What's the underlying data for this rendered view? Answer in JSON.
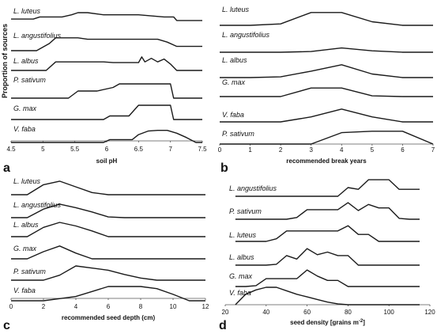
{
  "chart_data": [
    {
      "type": "line",
      "panel": "a",
      "xlabel": "soil pH",
      "ylabel": "Proportion of sources",
      "xlim": [
        4.5,
        7.5
      ],
      "xticks": [
        "4.5",
        "5",
        "5.5",
        "6",
        "6.5",
        "7",
        "7.5"
      ],
      "series": [
        {
          "name": "L. luteus",
          "x": [
            4.5,
            4.85,
            4.95,
            5.3,
            5.45,
            5.55,
            5.7,
            5.95,
            6.5,
            6.9,
            7.05,
            7.1,
            7.5
          ],
          "y": [
            0.55,
            0.55,
            0.7,
            0.7,
            0.85,
            1.0,
            1.0,
            0.85,
            0.85,
            0.7,
            0.7,
            0.45,
            0.45
          ]
        },
        {
          "name": "L. angustifolius",
          "x": [
            4.5,
            4.9,
            5.1,
            5.2,
            5.55,
            5.7,
            6.8,
            6.95,
            7.1,
            7.5
          ],
          "y": [
            0.0,
            0.0,
            0.5,
            0.9,
            0.9,
            0.8,
            0.8,
            0.6,
            0.3,
            0.3
          ]
        },
        {
          "name": "L. albus",
          "x": [
            4.5,
            5.05,
            5.2,
            5.95,
            6.1,
            6.5,
            6.55,
            6.6,
            6.7,
            6.8,
            6.9,
            7.0,
            7.1,
            7.5
          ],
          "y": [
            0.0,
            0.0,
            0.6,
            0.6,
            0.55,
            0.55,
            0.95,
            0.6,
            0.85,
            0.6,
            0.8,
            0.45,
            0.0,
            0.0
          ]
        },
        {
          "name": "P. sativum",
          "x": [
            4.5,
            5.4,
            5.55,
            5.85,
            6.1,
            6.2,
            7.0,
            7.05,
            7.5
          ],
          "y": [
            0.0,
            0.0,
            0.5,
            0.5,
            0.75,
            1.0,
            1.0,
            0.0,
            0.0
          ]
        },
        {
          "name": "G. max",
          "x": [
            4.5,
            5.95,
            6.05,
            6.35,
            6.5,
            7.0,
            7.05,
            7.5
          ],
          "y": [
            0.0,
            0.0,
            0.25,
            0.25,
            1.0,
            1.0,
            0.0,
            0.0
          ]
        },
        {
          "name": "V. faba",
          "x": [
            4.5,
            5.95,
            6.05,
            6.4,
            6.5,
            6.65,
            6.8,
            6.95,
            7.1,
            7.25,
            7.4,
            7.5
          ],
          "y": [
            0.0,
            0.0,
            0.2,
            0.2,
            0.55,
            0.8,
            0.85,
            0.85,
            0.65,
            0.35,
            0.0,
            0.0
          ]
        }
      ]
    },
    {
      "type": "line",
      "panel": "b",
      "xlabel": "recommended break years",
      "xlim": [
        0,
        7
      ],
      "xticks": [
        "0",
        "1",
        "2",
        "3",
        "4",
        "5",
        "6",
        "7"
      ],
      "series": [
        {
          "name": "L. luteus",
          "x": [
            0,
            1,
            2,
            3,
            4,
            5,
            6,
            7
          ],
          "y": [
            0.0,
            0.0,
            0.1,
            0.9,
            0.9,
            0.25,
            0.0,
            0.0
          ]
        },
        {
          "name": "L. angustifolius",
          "x": [
            0,
            1,
            2,
            3,
            4,
            5,
            6,
            7
          ],
          "y": [
            0.0,
            0.0,
            0.0,
            0.05,
            0.3,
            0.1,
            0.0,
            0.0
          ]
        },
        {
          "name": "L. albus",
          "x": [
            0,
            1,
            2,
            3,
            4,
            5,
            6,
            7
          ],
          "y": [
            0.0,
            0.0,
            0.05,
            0.45,
            0.9,
            0.25,
            0.0,
            0.0
          ]
        },
        {
          "name": "G. max",
          "x": [
            0,
            1,
            2,
            3,
            4,
            5,
            6,
            7
          ],
          "y": [
            0.0,
            0.0,
            0.0,
            0.6,
            0.6,
            0.05,
            0.0,
            0.0
          ]
        },
        {
          "name": "V. faba",
          "x": [
            0,
            1,
            2,
            3,
            4,
            5,
            6,
            7
          ],
          "y": [
            0.0,
            0.0,
            0.0,
            0.35,
            0.9,
            0.35,
            0.0,
            0.0
          ]
        },
        {
          "name": "P. sativum",
          "x": [
            0,
            1,
            2,
            3,
            4,
            5,
            6,
            7
          ],
          "y": [
            0.0,
            0.0,
            0.0,
            0.0,
            0.8,
            0.9,
            0.9,
            0.0
          ]
        }
      ]
    },
    {
      "type": "line",
      "panel": "c",
      "xlabel": "recommended seed depth (cm)",
      "xlim": [
        0,
        12
      ],
      "xticks": [
        "0",
        "2",
        "4",
        "6",
        "8",
        "10",
        "12"
      ],
      "series": [
        {
          "name": "L. luteus",
          "x": [
            0,
            1,
            2,
            3,
            4,
            5,
            6,
            7,
            8,
            9,
            10,
            11,
            12
          ],
          "y": [
            0.0,
            0.0,
            0.7,
            0.95,
            0.55,
            0.15,
            0.0,
            0.0,
            0.0,
            0.0,
            0.0,
            0.0,
            0.0
          ]
        },
        {
          "name": "L. angustifolius",
          "x": [
            0,
            1,
            2,
            3,
            4,
            5,
            6,
            7,
            8,
            9,
            10,
            11,
            12
          ],
          "y": [
            0.0,
            0.0,
            0.6,
            0.95,
            0.7,
            0.4,
            0.05,
            0.0,
            0.0,
            0.0,
            0.0,
            0.0,
            0.0
          ]
        },
        {
          "name": "L. albus",
          "x": [
            0,
            1,
            2,
            3,
            4,
            5,
            6,
            7,
            8,
            9,
            10,
            11,
            12
          ],
          "y": [
            0.0,
            0.0,
            0.65,
            1.0,
            0.75,
            0.4,
            0.0,
            0.0,
            0.0,
            0.0,
            0.0,
            0.0,
            0.0
          ]
        },
        {
          "name": "G. max",
          "x": [
            0,
            1,
            2,
            3,
            4,
            5,
            6,
            7,
            8,
            9,
            10,
            11,
            12
          ],
          "y": [
            0.0,
            0.0,
            0.5,
            0.9,
            0.4,
            0.0,
            0.0,
            0.0,
            0.0,
            0.0,
            0.0,
            0.0,
            0.0
          ]
        },
        {
          "name": "P. sativum",
          "x": [
            0,
            1,
            2,
            3,
            4,
            5,
            6,
            7,
            8,
            9,
            10,
            11,
            12
          ],
          "y": [
            0.0,
            0.0,
            0.0,
            0.35,
            1.0,
            0.85,
            0.7,
            0.4,
            0.15,
            0.0,
            0.0,
            0.0,
            0.0
          ]
        },
        {
          "name": "V. faba",
          "x": [
            0,
            1,
            2,
            3,
            4,
            5,
            6,
            7,
            8,
            9,
            10,
            11,
            12
          ],
          "y": [
            0.0,
            0.0,
            0.0,
            0.15,
            0.3,
            0.65,
            1.0,
            1.0,
            1.0,
            0.85,
            0.45,
            0.0,
            0.0
          ]
        }
      ]
    },
    {
      "type": "line",
      "panel": "d",
      "xlabel": "seed density [grains m",
      "xlabel_superscript": "-2",
      "xlabel_suffix": "]",
      "xlim": [
        20,
        120
      ],
      "xticks": [
        "20",
        "40",
        "60",
        "80",
        "100",
        "120"
      ],
      "series": [
        {
          "name": "L. angustifolius",
          "x": [
            25,
            70,
            75,
            80,
            85,
            90,
            95,
            100,
            105,
            110,
            115
          ],
          "y": [
            0.0,
            0.0,
            0.0,
            0.5,
            0.4,
            0.95,
            0.95,
            0.95,
            0.4,
            0.4,
            0.4
          ]
        },
        {
          "name": "P. sativum",
          "x": [
            25,
            50,
            55,
            60,
            65,
            70,
            75,
            80,
            85,
            90,
            95,
            100,
            105,
            110,
            115
          ],
          "y": [
            0.0,
            0.0,
            0.1,
            0.55,
            0.55,
            0.55,
            0.55,
            0.95,
            0.5,
            0.85,
            0.65,
            0.65,
            0.05,
            0.0,
            0.0
          ]
        },
        {
          "name": "L. luteus",
          "x": [
            25,
            40,
            45,
            50,
            55,
            60,
            65,
            70,
            75,
            80,
            85,
            90,
            95,
            100,
            105,
            110,
            115
          ],
          "y": [
            0.0,
            0.0,
            0.15,
            0.6,
            0.6,
            0.6,
            0.6,
            0.6,
            0.6,
            0.9,
            0.4,
            0.4,
            0.0,
            0.0,
            0.0,
            0.0,
            0.0
          ]
        },
        {
          "name": "L. albus",
          "x": [
            25,
            40,
            45,
            50,
            55,
            60,
            65,
            70,
            75,
            80,
            85,
            90,
            95,
            100,
            105,
            110,
            115
          ],
          "y": [
            0.0,
            0.0,
            0.05,
            0.55,
            0.35,
            0.95,
            0.6,
            0.75,
            0.55,
            0.55,
            0.0,
            0.0,
            0.0,
            0.0,
            0.0,
            0.0,
            0.0
          ]
        },
        {
          "name": "G. max",
          "x": [
            25,
            30,
            35,
            40,
            45,
            50,
            55,
            60,
            65,
            70,
            75,
            80,
            85,
            90,
            95,
            100,
            105,
            110,
            115
          ],
          "y": [
            0.0,
            0.0,
            0.05,
            0.45,
            0.45,
            0.45,
            0.45,
            0.95,
            0.6,
            0.35,
            0.35,
            0.0,
            0.0,
            0.0,
            0.0,
            0.0,
            0.0,
            0.0,
            0.0
          ]
        },
        {
          "name": "V. faba",
          "x": [
            25,
            30,
            35,
            40,
            45,
            50,
            55,
            60,
            65,
            70,
            75,
            80,
            85,
            90,
            95,
            100,
            105,
            110,
            115
          ],
          "y": [
            0.0,
            0.6,
            0.85,
            1.0,
            1.0,
            0.8,
            0.6,
            0.45,
            0.3,
            0.15,
            0.05,
            0.0,
            0.0,
            0.0,
            0.0,
            0.0,
            0.0,
            0.0,
            0.0
          ]
        }
      ]
    }
  ]
}
